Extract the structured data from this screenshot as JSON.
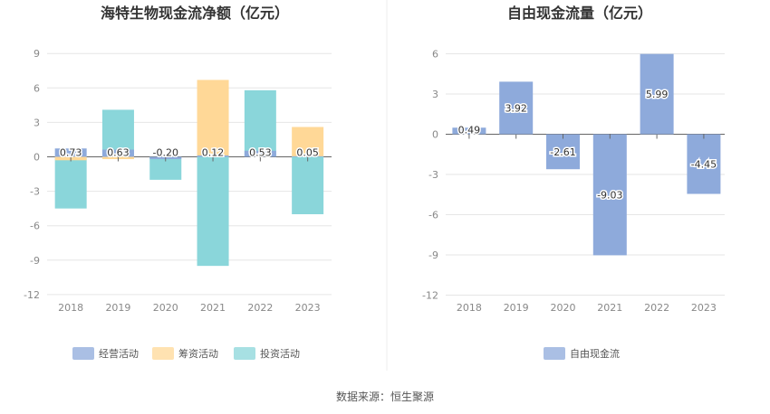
{
  "source": "数据来源：恒生聚源",
  "chart_data": [
    {
      "type": "bar",
      "title": "海特生物现金流净额（亿元）",
      "categories": [
        "2018",
        "2019",
        "2020",
        "2021",
        "2022",
        "2023"
      ],
      "series": [
        {
          "name": "经营活动",
          "color": "#8eaadb",
          "values": [
            0.73,
            0.63,
            -0.2,
            0.12,
            0.53,
            0.05
          ]
        },
        {
          "name": "筹资活动",
          "color": "#ffd897",
          "values": [
            -0.3,
            -0.2,
            0.0,
            6.7,
            0.0,
            2.6
          ]
        },
        {
          "name": "投资活动",
          "color": "#8ad6da",
          "values": [
            -4.5,
            4.1,
            -2.0,
            -9.5,
            5.8,
            -5.0
          ]
        }
      ],
      "data_labels": [
        "0.73",
        "0.63",
        "-0.20",
        "0.12",
        "0.53",
        "0.05"
      ],
      "yticks": [
        9,
        6,
        3,
        0,
        -3,
        -6,
        -9,
        -12
      ],
      "ylim": [
        -12,
        9
      ],
      "grid": true,
      "legend_position": "bottom"
    },
    {
      "type": "bar",
      "title": "自由现金流量（亿元）",
      "categories": [
        "2018",
        "2019",
        "2020",
        "2021",
        "2022",
        "2023"
      ],
      "series": [
        {
          "name": "自由现金流",
          "color": "#8eaadb",
          "values": [
            0.49,
            3.92,
            -2.61,
            -9.03,
            5.99,
            -4.45
          ]
        }
      ],
      "data_labels": [
        "0.49",
        "3.92",
        "-2.61",
        "-9.03",
        "5.99",
        "-4.45"
      ],
      "yticks": [
        6,
        3,
        0,
        -3,
        -6,
        -9,
        -12
      ],
      "ylim": [
        -12,
        6
      ],
      "grid": true,
      "legend_position": "bottom"
    }
  ]
}
